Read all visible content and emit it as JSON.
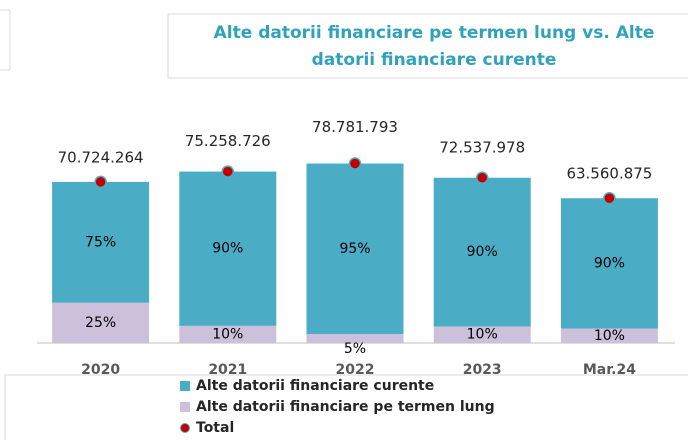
{
  "chart_data": {
    "type": "stacked_bar",
    "title": [
      "Alte datorii financiare pe termen lung vs. Alte",
      "datorii financiare curente"
    ],
    "categories": [
      "2020",
      "2021",
      "2022",
      "2023",
      "Mar.24"
    ],
    "series": [
      {
        "name": "Alte datorii financiare pe termen lung",
        "color": "#ccc0da",
        "values": [
          25,
          10,
          5,
          10,
          10
        ],
        "value_labels": [
          "25%",
          "10%",
          "5%",
          "10%",
          "10%"
        ]
      },
      {
        "name": "Alte datorii financiare curente",
        "color": "#4bacc6",
        "values": [
          75,
          90,
          95,
          90,
          90
        ],
        "value_labels": [
          "75%",
          "90%",
          "95%",
          "90%",
          "90%"
        ]
      },
      {
        "name": "Total",
        "color": "#c00000",
        "values": [
          70724264,
          75258726,
          78781793,
          72537978,
          63560875
        ],
        "value_labels": [
          "70.724.264",
          "75.258.726",
          "78.781.793",
          "72.537.978",
          "63.560.875"
        ]
      }
    ],
    "legend_order": [
      1,
      0,
      2
    ],
    "ylim": [
      0,
      90000000
    ]
  }
}
